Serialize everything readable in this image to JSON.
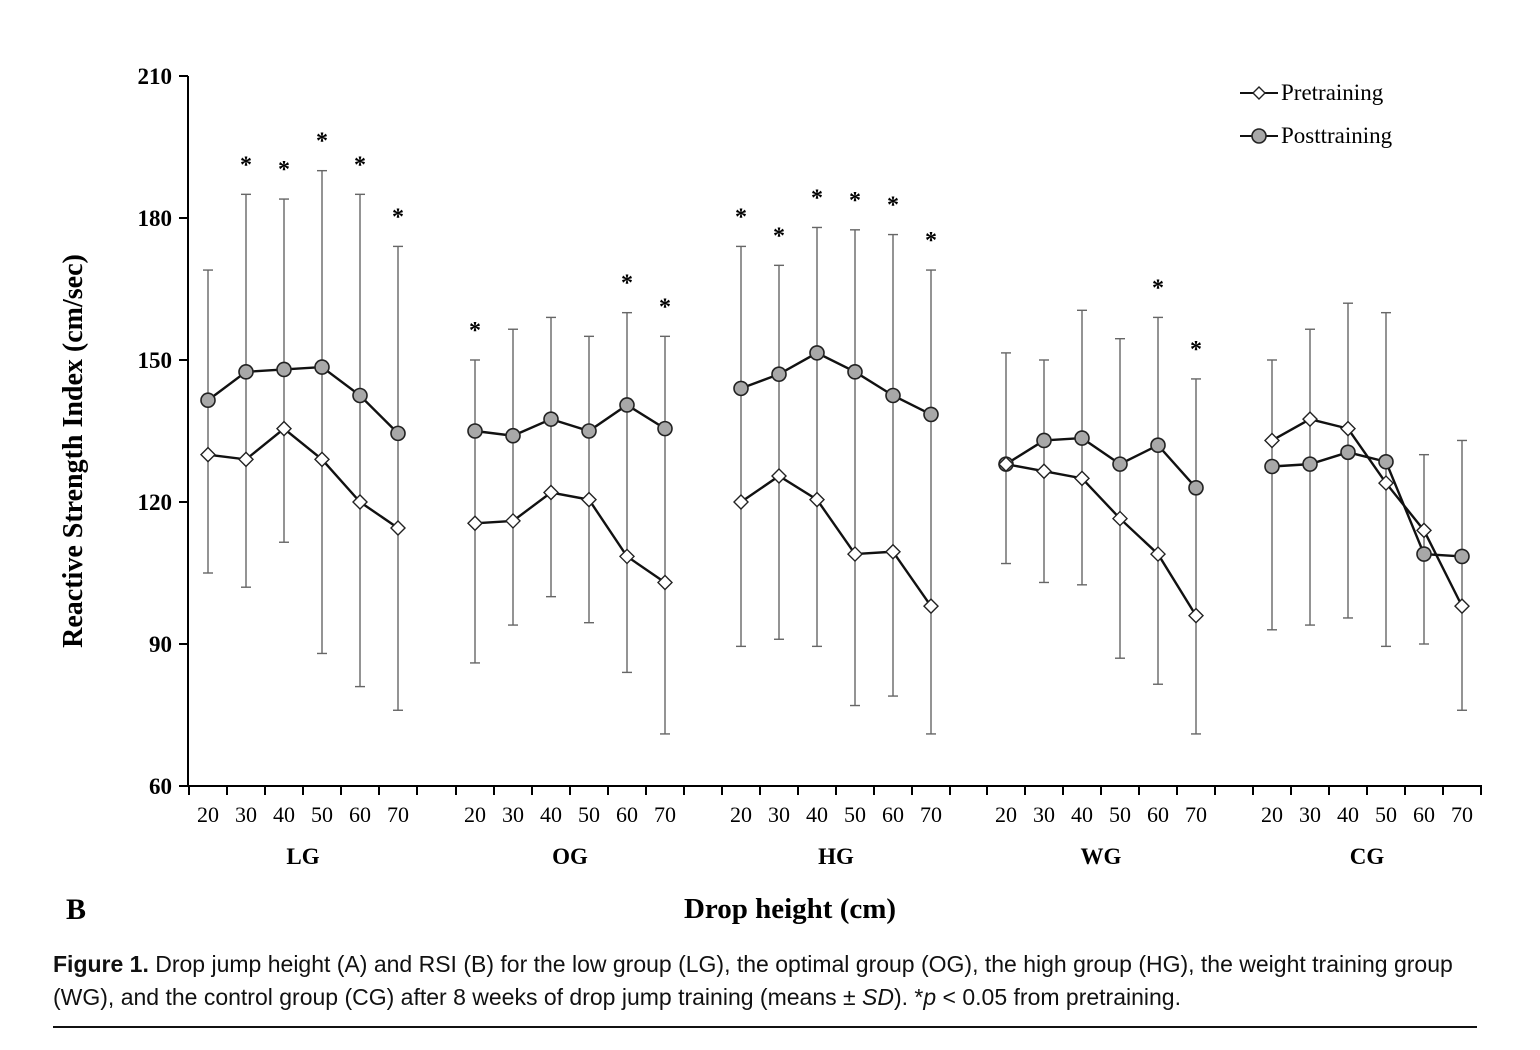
{
  "chart_data": {
    "type": "line",
    "panel_label": "B",
    "ylabel": "Reactive Strength Index (cm/sec)",
    "xlabel": "Drop height (cm)",
    "ylim": [
      60,
      210
    ],
    "yticks": [
      60,
      90,
      120,
      150,
      180,
      210
    ],
    "grid": false,
    "legend_position": "top-right",
    "legend": [
      "Pretraining",
      "Posttraining"
    ],
    "x": [
      20,
      30,
      40,
      50,
      60,
      70
    ],
    "x_tick_labels": [
      "20",
      "30",
      "40",
      "50",
      "60",
      "70"
    ],
    "significance_marker": "*",
    "groups": [
      {
        "name": "LG",
        "pre": {
          "mean": [
            130,
            129,
            135.5,
            129,
            120,
            114.5
          ],
          "sd_upper": [
            169,
            185,
            184,
            190,
            185,
            174
          ],
          "sd_lower": [
            105,
            102,
            111.5,
            88,
            81,
            76
          ]
        },
        "post": {
          "mean": [
            141.5,
            147.5,
            148,
            148.5,
            142.5,
            134.5
          ]
        },
        "significant": [
          false,
          true,
          true,
          true,
          true,
          true
        ]
      },
      {
        "name": "OG",
        "pre": {
          "mean": [
            115.5,
            116,
            122,
            120.5,
            108.5,
            103
          ],
          "sd_upper": [
            150,
            156.5,
            159,
            155,
            160,
            155
          ],
          "sd_lower": [
            86,
            94,
            100,
            94.5,
            84,
            71
          ]
        },
        "post": {
          "mean": [
            135,
            134,
            137.5,
            135,
            140.5,
            135.5
          ]
        },
        "significant": [
          true,
          false,
          false,
          false,
          true,
          true
        ]
      },
      {
        "name": "HG",
        "pre": {
          "mean": [
            120,
            125.5,
            120.5,
            109,
            109.5,
            98
          ],
          "sd_upper": [
            174,
            170,
            178,
            177.5,
            176.5,
            169
          ],
          "sd_lower": [
            89.5,
            91,
            89.5,
            77,
            79,
            71
          ]
        },
        "post": {
          "mean": [
            144,
            147,
            151.5,
            147.5,
            142.5,
            138.5
          ]
        },
        "significant": [
          true,
          true,
          true,
          true,
          true,
          true
        ]
      },
      {
        "name": "WG",
        "pre": {
          "mean": [
            128,
            126.5,
            125,
            116.5,
            109,
            96
          ],
          "sd_upper": [
            151.5,
            150,
            160.5,
            154.5,
            159,
            146
          ],
          "sd_lower": [
            107,
            103,
            102.5,
            87,
            81.5,
            71
          ]
        },
        "post": {
          "mean": [
            128,
            133,
            133.5,
            128,
            132,
            123
          ]
        },
        "significant": [
          false,
          false,
          false,
          false,
          true,
          true
        ]
      },
      {
        "name": "CG",
        "pre": {
          "mean": [
            133,
            137.5,
            135.5,
            124,
            114,
            98
          ],
          "sd_upper": [
            150,
            156.5,
            162,
            160,
            130,
            133
          ],
          "sd_lower": [
            93,
            94,
            95.5,
            89.5,
            90,
            76
          ]
        },
        "post": {
          "mean": [
            127.5,
            128,
            130.5,
            128.5,
            109,
            108.5
          ]
        },
        "significant": [
          false,
          false,
          false,
          false,
          false,
          false
        ]
      }
    ]
  },
  "caption": {
    "label": "Figure 1.",
    "text_part1": " Drop jump height (A) and RSI (B) for the low group (LG), the optimal group (OG), the high group (HG), the weight training group (WG), and the control group (CG) after 8 weeks of drop jump training (means ± ",
    "sd": "SD",
    "text_part2": "). *",
    "p": "p",
    "text_part3": " < 0.05 from pretraining."
  }
}
